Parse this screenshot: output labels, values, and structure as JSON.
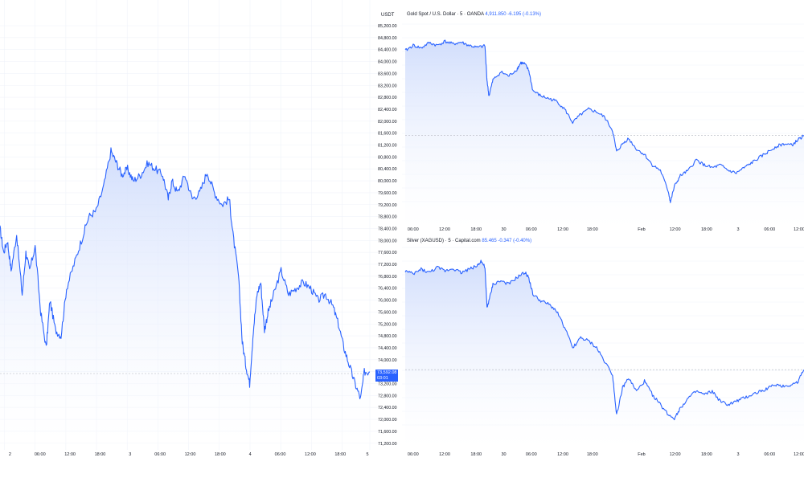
{
  "left_chart": {
    "unit": "USDT",
    "current_price": "73,592.08",
    "countdown": "03:01"
  },
  "gold_legend": {
    "name": "Gold Spot / U.S. Dollar · 5 · OANDA",
    "value": "4,911.850",
    "change": "-6.195 (-0.13%)"
  },
  "silver_legend": {
    "name": "Silver (XAGUSD) · 5 · Capital.com",
    "value": "85.465",
    "change": "-0.347 (-0.40%)"
  },
  "colors": {
    "line": "#2962ff",
    "fill_top": "#cfdcfc",
    "fill_bottom": "#ffffff",
    "grid": "#f0f3fa",
    "text": "#131722"
  },
  "chart_data": [
    {
      "type": "area",
      "id": "btc",
      "y_tick_labels": [
        "85,200.00",
        "84,800.00",
        "84,400.00",
        "84,000.00",
        "83,600.00",
        "83,200.00",
        "82,800.00",
        "82,400.00",
        "82,000.00",
        "81,600.00",
        "81,200.00",
        "80,800.00",
        "80,400.00",
        "80,000.00",
        "79,600.00",
        "79,200.00",
        "78,800.00",
        "78,400.00",
        "78,000.00",
        "77,600.00",
        "77,200.00",
        "76,800.00",
        "76,400.00",
        "76,000.00",
        "75,600.00",
        "75,200.00",
        "74,800.00",
        "74,400.00",
        "74,000.00",
        "73,600.00",
        "73,200.00",
        "72,800.00",
        "72,400.00",
        "72,000.00",
        "71,600.00",
        "71,200.00"
      ],
      "ylim": [
        71000,
        85400
      ],
      "x_tick_labels": [
        "2",
        "06:00",
        "12:00",
        "18:00",
        "3",
        "06:00",
        "12:00",
        "18:00",
        "4",
        "06:00",
        "12:00",
        "18:00",
        "5"
      ],
      "x_tick_pos": [
        0.012,
        0.095,
        0.178,
        0.261,
        0.344,
        0.427,
        0.51,
        0.593,
        0.676,
        0.759,
        0.842,
        0.925,
        1.0
      ],
      "points": [
        [
          0,
          78400
        ],
        [
          0.01,
          77600
        ],
        [
          0.02,
          78000
        ],
        [
          0.03,
          77000
        ],
        [
          0.045,
          78200
        ],
        [
          0.06,
          76200
        ],
        [
          0.07,
          77600
        ],
        [
          0.08,
          77000
        ],
        [
          0.095,
          77800
        ],
        [
          0.11,
          75600
        ],
        [
          0.125,
          74400
        ],
        [
          0.135,
          76000
        ],
        [
          0.15,
          75000
        ],
        [
          0.165,
          74800
        ],
        [
          0.18,
          76400
        ],
        [
          0.2,
          77200
        ],
        [
          0.22,
          78000
        ],
        [
          0.24,
          78800
        ],
        [
          0.26,
          79000
        ],
        [
          0.28,
          79800
        ],
        [
          0.3,
          81000
        ],
        [
          0.315,
          80600
        ],
        [
          0.33,
          80200
        ],
        [
          0.345,
          80400
        ],
        [
          0.36,
          80000
        ],
        [
          0.38,
          80200
        ],
        [
          0.4,
          80600
        ],
        [
          0.42,
          80400
        ],
        [
          0.44,
          80200
        ],
        [
          0.455,
          79400
        ],
        [
          0.465,
          80000
        ],
        [
          0.48,
          79600
        ],
        [
          0.5,
          80200
        ],
        [
          0.52,
          79400
        ],
        [
          0.54,
          79600
        ],
        [
          0.56,
          80300
        ],
        [
          0.58,
          79600
        ],
        [
          0.6,
          79200
        ],
        [
          0.62,
          79400
        ],
        [
          0.63,
          78200
        ],
        [
          0.645,
          76800
        ],
        [
          0.655,
          74600
        ],
        [
          0.665,
          73800
        ],
        [
          0.675,
          73200
        ],
        [
          0.685,
          75000
        ],
        [
          0.695,
          76200
        ],
        [
          0.705,
          76600
        ],
        [
          0.715,
          75000
        ],
        [
          0.725,
          75600
        ],
        [
          0.74,
          76200
        ],
        [
          0.76,
          77000
        ],
        [
          0.78,
          76200
        ],
        [
          0.8,
          76400
        ],
        [
          0.82,
          76600
        ],
        [
          0.84,
          76400
        ],
        [
          0.86,
          76000
        ],
        [
          0.88,
          76200
        ],
        [
          0.9,
          75800
        ],
        [
          0.915,
          75200
        ],
        [
          0.93,
          74400
        ],
        [
          0.945,
          73800
        ],
        [
          0.96,
          73200
        ],
        [
          0.975,
          72700
        ],
        [
          0.985,
          73600
        ],
        [
          1.0,
          73592
        ]
      ]
    },
    {
      "type": "area",
      "id": "gold",
      "ylim": [
        4560,
        5330
      ],
      "x_tick_labels": [
        "06:00",
        "12:00",
        "18:00",
        "30",
        "06:00",
        "12:00",
        "18:00",
        "Feb",
        "12:00",
        "18:00",
        "3",
        "06:00",
        "12:00"
      ],
      "x_tick_pos": [
        0.02,
        0.1,
        0.18,
        0.25,
        0.32,
        0.4,
        0.475,
        0.6,
        0.685,
        0.765,
        0.845,
        0.925,
        1.0
      ],
      "points": [
        [
          0,
          5230
        ],
        [
          0.02,
          5250
        ],
        [
          0.04,
          5240
        ],
        [
          0.06,
          5260
        ],
        [
          0.08,
          5250
        ],
        [
          0.1,
          5265
        ],
        [
          0.12,
          5255
        ],
        [
          0.14,
          5262
        ],
        [
          0.16,
          5250
        ],
        [
          0.18,
          5242
        ],
        [
          0.2,
          5248
        ],
        [
          0.205,
          5120
        ],
        [
          0.21,
          5060
        ],
        [
          0.22,
          5120
        ],
        [
          0.24,
          5150
        ],
        [
          0.26,
          5135
        ],
        [
          0.28,
          5160
        ],
        [
          0.29,
          5185
        ],
        [
          0.3,
          5180
        ],
        [
          0.31,
          5155
        ],
        [
          0.32,
          5080
        ],
        [
          0.34,
          5060
        ],
        [
          0.36,
          5050
        ],
        [
          0.38,
          5040
        ],
        [
          0.4,
          5010
        ],
        [
          0.42,
          4960
        ],
        [
          0.44,
          4990
        ],
        [
          0.46,
          5010
        ],
        [
          0.48,
          5000
        ],
        [
          0.5,
          4980
        ],
        [
          0.52,
          4930
        ],
        [
          0.53,
          4850
        ],
        [
          0.545,
          4880
        ],
        [
          0.56,
          4900
        ],
        [
          0.58,
          4860
        ],
        [
          0.6,
          4840
        ],
        [
          0.62,
          4800
        ],
        [
          0.64,
          4780
        ],
        [
          0.66,
          4700
        ],
        [
          0.665,
          4660
        ],
        [
          0.675,
          4720
        ],
        [
          0.69,
          4760
        ],
        [
          0.71,
          4780
        ],
        [
          0.73,
          4820
        ],
        [
          0.75,
          4800
        ],
        [
          0.77,
          4790
        ],
        [
          0.79,
          4800
        ],
        [
          0.81,
          4780
        ],
        [
          0.83,
          4770
        ],
        [
          0.85,
          4790
        ],
        [
          0.87,
          4810
        ],
        [
          0.89,
          4830
        ],
        [
          0.91,
          4850
        ],
        [
          0.93,
          4870
        ],
        [
          0.95,
          4880
        ],
        [
          0.97,
          4875
        ],
        [
          0.985,
          4895
        ],
        [
          1.0,
          4911.85
        ]
      ],
      "last_line": 4911.85
    },
    {
      "type": "area",
      "id": "silver",
      "ylim": [
        62,
        122
      ],
      "x_tick_labels": [
        "06:00",
        "12:00",
        "18:00",
        "30",
        "06:00",
        "12:00",
        "18:00",
        "Feb",
        "12:00",
        "18:00",
        "3",
        "06:00",
        "12:00"
      ],
      "x_tick_pos": [
        0.02,
        0.1,
        0.18,
        0.25,
        0.32,
        0.4,
        0.475,
        0.6,
        0.685,
        0.765,
        0.845,
        0.925,
        1.0
      ],
      "points": [
        [
          0,
          115
        ],
        [
          0.02,
          114
        ],
        [
          0.04,
          115.5
        ],
        [
          0.06,
          114.5
        ],
        [
          0.08,
          116
        ],
        [
          0.1,
          115
        ],
        [
          0.12,
          115.8
        ],
        [
          0.14,
          114.5
        ],
        [
          0.16,
          115.5
        ],
        [
          0.18,
          116.5
        ],
        [
          0.19,
          118
        ],
        [
          0.2,
          116
        ],
        [
          0.205,
          104
        ],
        [
          0.21,
          106
        ],
        [
          0.22,
          111
        ],
        [
          0.24,
          112
        ],
        [
          0.26,
          111
        ],
        [
          0.28,
          113
        ],
        [
          0.3,
          114.5
        ],
        [
          0.31,
          113
        ],
        [
          0.32,
          108
        ],
        [
          0.34,
          106
        ],
        [
          0.36,
          105
        ],
        [
          0.38,
          103
        ],
        [
          0.4,
          98
        ],
        [
          0.42,
          92
        ],
        [
          0.44,
          95
        ],
        [
          0.46,
          94
        ],
        [
          0.48,
          92
        ],
        [
          0.5,
          88
        ],
        [
          0.52,
          84
        ],
        [
          0.53,
          72
        ],
        [
          0.545,
          80
        ],
        [
          0.56,
          83
        ],
        [
          0.58,
          79
        ],
        [
          0.6,
          82
        ],
        [
          0.62,
          78
        ],
        [
          0.64,
          75
        ],
        [
          0.66,
          72
        ],
        [
          0.675,
          71
        ],
        [
          0.69,
          74
        ],
        [
          0.71,
          77
        ],
        [
          0.73,
          79
        ],
        [
          0.75,
          78
        ],
        [
          0.77,
          79
        ],
        [
          0.79,
          76
        ],
        [
          0.81,
          75
        ],
        [
          0.83,
          76
        ],
        [
          0.85,
          77
        ],
        [
          0.87,
          78
        ],
        [
          0.89,
          79
        ],
        [
          0.91,
          80
        ],
        [
          0.93,
          81
        ],
        [
          0.95,
          80.5
        ],
        [
          0.97,
          81
        ],
        [
          0.985,
          82
        ],
        [
          1.0,
          85.465
        ]
      ],
      "last_line": 85.465
    }
  ]
}
